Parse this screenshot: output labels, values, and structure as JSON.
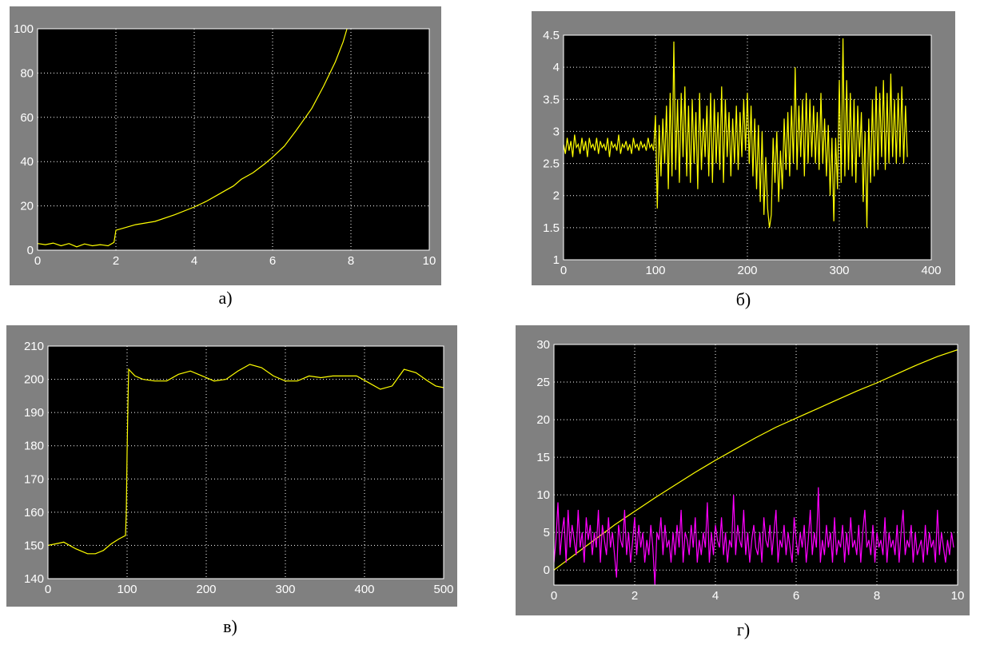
{
  "colors": {
    "frame": "#808080",
    "plot_bg": "#000000",
    "grid": "#ffffff",
    "tick_text": "#ffffff",
    "yellow": "#ffff00",
    "magenta": "#ff00ff"
  },
  "captions": [
    "а)",
    "б)",
    "в)",
    "г)"
  ],
  "chart_data": [
    {
      "type": "line",
      "grid": true,
      "xlim": [
        0,
        10
      ],
      "ylim": [
        0,
        100
      ],
      "xticks": [
        0,
        2,
        4,
        6,
        8,
        10
      ],
      "yticks": [
        0,
        20,
        40,
        60,
        80,
        100
      ],
      "xtick_labels": [
        "0",
        "2",
        "4",
        "6",
        "8",
        "10"
      ],
      "ytick_labels": [
        "0",
        "20",
        "40",
        "60",
        "80",
        "100"
      ],
      "series": [
        {
          "color": "#ffff00",
          "x": [
            0,
            0.2,
            0.4,
            0.6,
            0.8,
            1.0,
            1.2,
            1.4,
            1.6,
            1.8,
            1.95,
            2.0,
            2.2,
            2.5,
            3.0,
            3.5,
            4.0,
            4.3,
            4.6,
            4.8,
            5.0,
            5.2,
            5.5,
            5.8,
            6.0,
            6.3,
            6.6,
            7.0,
            7.3,
            7.6,
            7.8,
            7.9
          ],
          "values": [
            3,
            2.5,
            3.2,
            2,
            3,
            1.5,
            2.8,
            2,
            2.5,
            2,
            3.5,
            9,
            10,
            11.5,
            13,
            16,
            19.5,
            22,
            25,
            27,
            29,
            32,
            35,
            39,
            42,
            47,
            54,
            64,
            74,
            85,
            94,
            100
          ]
        }
      ]
    },
    {
      "type": "line",
      "grid": true,
      "xlim": [
        0,
        400
      ],
      "ylim": [
        1,
        4.5
      ],
      "xticks": [
        0,
        100,
        200,
        300,
        400
      ],
      "yticks": [
        1,
        1.5,
        2,
        2.5,
        3,
        3.5,
        4,
        4.5
      ],
      "xtick_labels": [
        "0",
        "100",
        "200",
        "300",
        "400"
      ],
      "ytick_labels": [
        "1",
        "1.5",
        "2",
        "2.5",
        "3",
        "3.5",
        "4",
        "4.5"
      ],
      "series": [
        {
          "color": "#ffff00",
          "x_step": 2,
          "x0": 0,
          "values": [
            2.8,
            2.65,
            2.9,
            2.7,
            2.85,
            2.6,
            2.95,
            2.75,
            2.8,
            2.65,
            2.9,
            2.7,
            2.85,
            2.6,
            2.9,
            2.75,
            2.8,
            2.7,
            2.9,
            2.65,
            2.85,
            2.75,
            2.8,
            2.7,
            2.9,
            2.6,
            2.85,
            2.75,
            2.8,
            2.7,
            2.95,
            2.65,
            2.8,
            2.75,
            2.85,
            2.7,
            2.8,
            2.65,
            2.9,
            2.75,
            2.8,
            2.7,
            2.85,
            2.75,
            2.8,
            2.7,
            2.9,
            2.75,
            2.8,
            2.7,
            3.25,
            1.8,
            3.1,
            2.3,
            3.2,
            2.5,
            3.4,
            2.1,
            3.6,
            2.3,
            4.4,
            2.4,
            3.5,
            2.2,
            3.6,
            2.6,
            3.7,
            2.3,
            3.4,
            2.2,
            3.5,
            2.5,
            3.3,
            2.1,
            3.6,
            2.4,
            3.2,
            2.6,
            3.4,
            2.3,
            3.6,
            2.2,
            3.5,
            2.5,
            3.3,
            2.4,
            3.7,
            2.2,
            3.5,
            2.6,
            3.3,
            2.3,
            3.2,
            2.5,
            3.4,
            2.4,
            3.3,
            2.6,
            3.5,
            2.7,
            3.6,
            2.5,
            3.4,
            2.3,
            3.2,
            2.1,
            3.1,
            1.9,
            3.0,
            1.7,
            2.6,
            1.8,
            1.5,
            1.7,
            2.9,
            2.2,
            3.0,
            1.9,
            2.7,
            2.1,
            3.2,
            2.4,
            3.3,
            2.3,
            3.4,
            2.5,
            4.0,
            2.4,
            3.4,
            2.6,
            3.5,
            2.3,
            3.6,
            2.5,
            3.5,
            2.6,
            3.4,
            2.5,
            3.3,
            2.4,
            3.6,
            2.5,
            3.2,
            2.3,
            3.1,
            2.0,
            2.9,
            1.6,
            2.9,
            2.1,
            3.8,
            2.2,
            4.45,
            2.3,
            3.8,
            2.4,
            3.6,
            2.3,
            3.5,
            2.2,
            3.4,
            2.6,
            3.3,
            1.9,
            3.0,
            1.5,
            3.2,
            2.2,
            3.5,
            2.3,
            3.7,
            2.4,
            3.6,
            2.6,
            3.8,
            2.4,
            3.6,
            2.5,
            3.9,
            2.6,
            3.5,
            2.5,
            3.6,
            2.6,
            3.7,
            2.5,
            3.4,
            2.6
          ]
        }
      ]
    },
    {
      "type": "line",
      "grid": true,
      "xlim": [
        0,
        500
      ],
      "ylim": [
        140,
        210
      ],
      "xticks": [
        0,
        100,
        200,
        300,
        400,
        500
      ],
      "yticks": [
        140,
        150,
        160,
        170,
        180,
        190,
        200,
        210
      ],
      "xtick_labels": [
        "0",
        "100",
        "200",
        "300",
        "400",
        "500"
      ],
      "ytick_labels": [
        "140",
        "150",
        "160",
        "170",
        "180",
        "190",
        "200",
        "210"
      ],
      "series": [
        {
          "color": "#ffff00",
          "x": [
            0,
            10,
            20,
            35,
            50,
            60,
            70,
            80,
            90,
            98,
            99,
            100,
            101,
            102,
            110,
            120,
            135,
            150,
            165,
            180,
            195,
            210,
            225,
            240,
            255,
            270,
            285,
            300,
            315,
            330,
            345,
            360,
            375,
            390,
            405,
            420,
            435,
            450,
            465,
            480,
            490,
            500
          ],
          "values": [
            150,
            150.5,
            151,
            149,
            147.5,
            147.5,
            148.5,
            150.5,
            152,
            153,
            160,
            178,
            192,
            203,
            201,
            200,
            199.5,
            199.5,
            201.5,
            202.5,
            201,
            199.5,
            200,
            202.5,
            204.5,
            203.5,
            201,
            199.5,
            199.5,
            201,
            200.5,
            201,
            201,
            201,
            199,
            197,
            198,
            203,
            202,
            199.5,
            198,
            197.5
          ]
        }
      ]
    },
    {
      "type": "line",
      "grid": true,
      "xlim": [
        0,
        10
      ],
      "ylim": [
        -2,
        30
      ],
      "xticks": [
        0,
        2,
        4,
        6,
        8,
        10
      ],
      "yticks": [
        0,
        5,
        10,
        15,
        20,
        25,
        30
      ],
      "xtick_labels": [
        "0",
        "2",
        "4",
        "6",
        "8",
        "10"
      ],
      "ytick_labels": [
        "0",
        "5",
        "10",
        "15",
        "20",
        "25",
        "30"
      ],
      "series": [
        {
          "color": "#ffff00",
          "x": [
            0,
            0.5,
            1,
            1.5,
            2,
            2.5,
            3,
            3.5,
            4,
            4.5,
            5,
            5.5,
            6,
            6.5,
            7,
            7.5,
            8,
            8.5,
            9,
            9.5,
            10
          ],
          "values": [
            0,
            2,
            4,
            6,
            7.8,
            9.6,
            11.3,
            13,
            14.6,
            16.1,
            17.6,
            19,
            20.2,
            21.4,
            22.6,
            23.8,
            24.9,
            26.1,
            27.3,
            28.4,
            29.3
          ]
        },
        {
          "color": "#ff00ff",
          "x_step": 0.05,
          "x0": 0,
          "values": [
            1,
            4,
            9,
            2,
            5,
            7,
            1,
            8,
            3,
            6,
            4,
            2,
            8,
            3,
            5,
            1,
            7,
            4,
            6,
            2,
            5,
            3,
            8,
            1,
            6,
            4,
            2,
            7,
            3,
            5,
            2,
            -1,
            6,
            4,
            3,
            8,
            2,
            5,
            1,
            4,
            7,
            2,
            6,
            3,
            5,
            1,
            4,
            2,
            6,
            3,
            -2,
            5,
            4,
            7,
            2,
            6,
            3,
            4,
            1,
            5,
            2,
            6,
            3,
            8,
            1,
            5,
            4,
            2,
            6,
            3,
            7,
            1,
            4,
            2,
            5,
            3,
            9,
            1,
            5,
            2,
            6,
            4,
            3,
            7,
            2,
            5,
            1,
            4,
            3,
            10,
            2,
            6,
            4,
            3,
            8,
            2,
            5,
            1,
            4,
            6,
            3,
            2,
            5,
            1,
            7,
            4,
            3,
            6,
            2,
            5,
            8,
            1,
            4,
            3,
            6,
            2,
            5,
            3,
            1,
            7,
            4,
            2,
            5,
            3,
            6,
            1,
            4,
            8,
            2,
            5,
            3,
            11,
            1,
            4,
            2,
            6,
            3,
            5,
            1,
            7,
            2,
            4,
            3,
            6,
            1,
            5,
            2,
            7,
            3,
            4,
            2,
            6,
            1,
            5,
            8,
            3,
            4,
            2,
            6,
            1,
            5,
            3,
            4,
            2,
            7,
            1,
            5,
            3,
            4,
            2,
            6,
            1,
            5,
            8,
            2,
            4,
            3,
            6,
            1,
            5,
            2,
            3,
            4,
            1,
            6,
            2,
            5,
            3,
            4,
            1,
            8,
            2,
            5,
            3,
            1,
            4,
            2,
            5,
            3
          ]
        }
      ]
    }
  ]
}
